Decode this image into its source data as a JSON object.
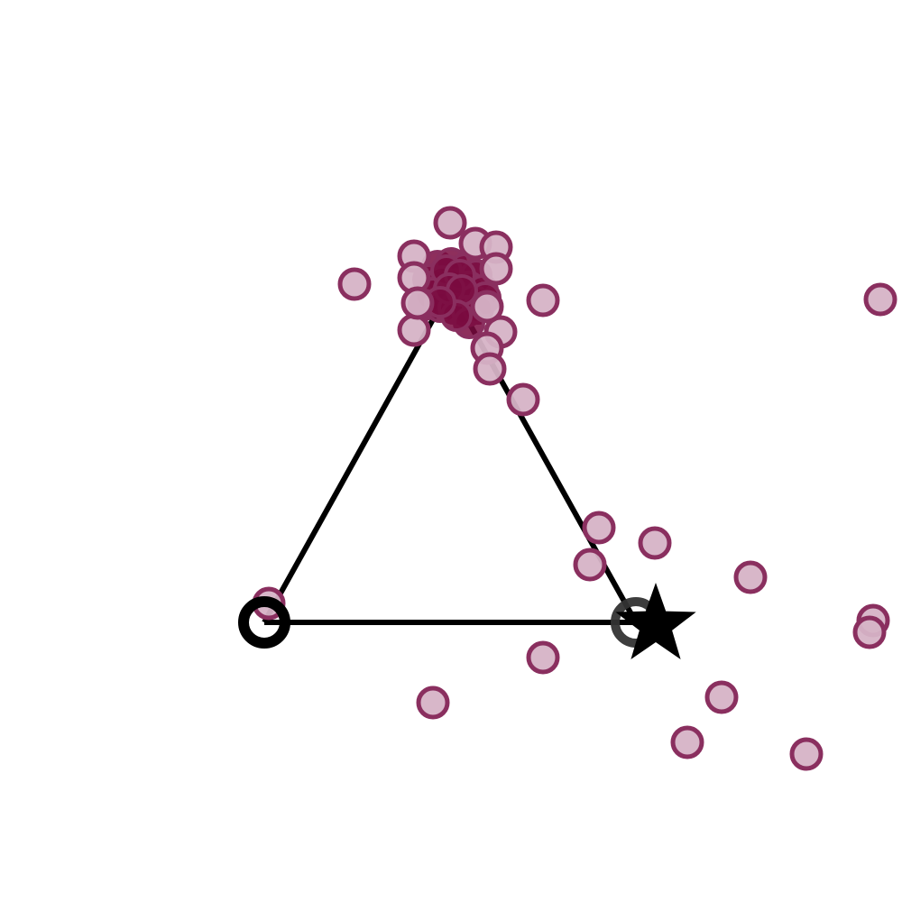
{
  "colors": {
    "background": "#ffffff",
    "triangle_stroke": "#000000",
    "point_fill": "#d6b3c6",
    "point_stroke": "#8a2f5f",
    "cluster_fill": "#7a0a40",
    "marker": "#000000"
  },
  "diagram": {
    "type": "triangle-with-points",
    "vertices": [
      {
        "name": "bottom-left",
        "marker": "ring"
      },
      {
        "name": "bottom-right",
        "marker": "ring-gray"
      },
      {
        "name": "apex",
        "marker": "none"
      }
    ],
    "goal_marker": "star-icon",
    "points_count": 34,
    "cluster_count": 26
  }
}
